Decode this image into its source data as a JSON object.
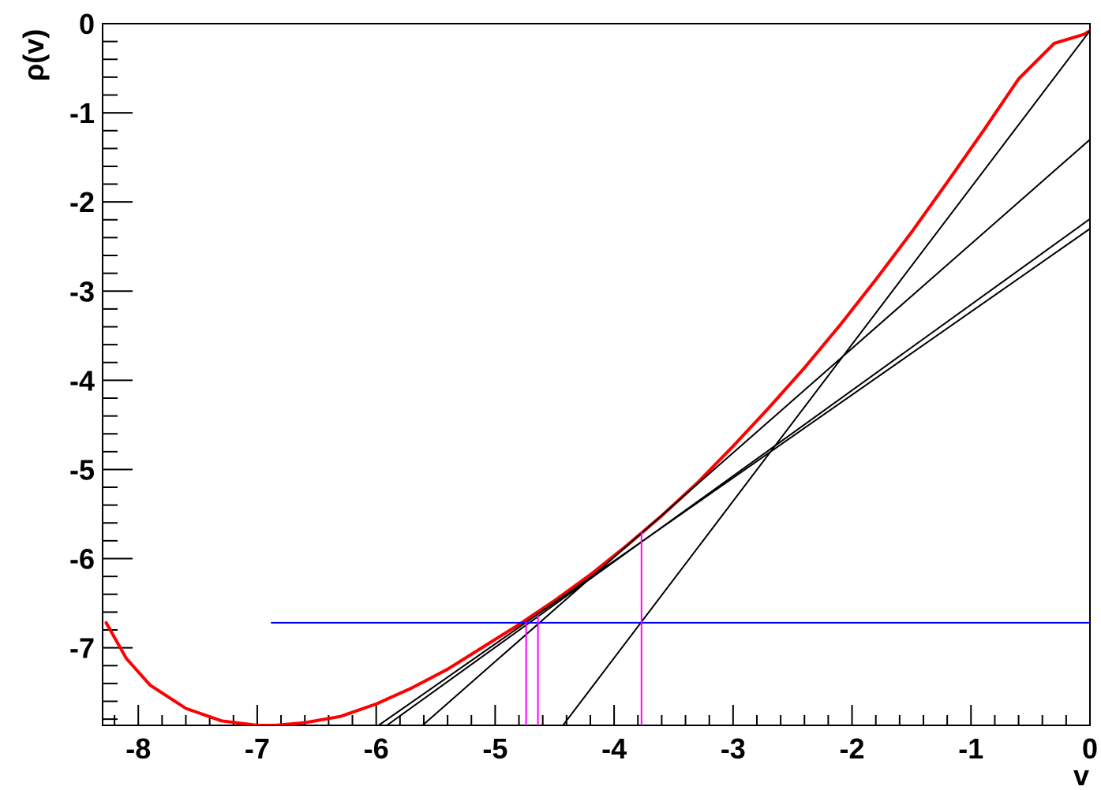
{
  "chart_data": {
    "type": "line",
    "title": "",
    "xlabel": "v",
    "ylabel": "ρ(v)",
    "xlim": [
      -8.3,
      0.0
    ],
    "ylim": [
      -7.87,
      0.0
    ],
    "x_ticks": [
      -8,
      -7,
      -6,
      -5,
      -4,
      -3,
      -2,
      -1,
      0
    ],
    "x_tick_labels": [
      "-8",
      "-7",
      "-6",
      "-5",
      "-4",
      "-3",
      "-2",
      "-1",
      "0"
    ],
    "y_ticks": [
      0,
      -1,
      -2,
      -3,
      -4,
      -5,
      -6,
      -7
    ],
    "y_tick_labels": [
      "0",
      "-1",
      "-2",
      "-3",
      "-4",
      "-5",
      "-6",
      "-7"
    ],
    "grid": false,
    "series": [
      {
        "kind": "curve",
        "color": "#ff0000",
        "x": [
          -8.27,
          -8.1,
          -7.9,
          -7.6,
          -7.3,
          -7.0,
          -6.85,
          -6.6,
          -6.3,
          -6.0,
          -5.7,
          -5.4,
          -5.1,
          -4.8,
          -4.5,
          -4.2,
          -3.9,
          -3.6,
          -3.3,
          -3.0,
          -2.7,
          -2.4,
          -2.1,
          -1.8,
          -1.5,
          -1.2,
          -0.9,
          -0.6,
          -0.3,
          -0.05,
          0.0
        ],
        "y": [
          -6.72,
          -7.12,
          -7.42,
          -7.68,
          -7.82,
          -7.87,
          -7.87,
          -7.84,
          -7.77,
          -7.63,
          -7.45,
          -7.24,
          -6.99,
          -6.74,
          -6.47,
          -6.18,
          -5.86,
          -5.52,
          -5.15,
          -4.74,
          -4.31,
          -3.86,
          -3.38,
          -2.87,
          -2.34,
          -1.78,
          -1.21,
          -0.62,
          -0.22,
          -0.12,
          -0.08
        ]
      },
      {
        "kind": "tangent",
        "color": "#000000",
        "x": [
          -5.98,
          0.0
        ],
        "y": [
          -7.87,
          -2.3
        ]
      },
      {
        "kind": "tangent",
        "color": "#000000",
        "x": [
          -5.91,
          0.0
        ],
        "y": [
          -7.87,
          -2.19
        ]
      },
      {
        "kind": "tangent",
        "color": "#000000",
        "x": [
          -5.61,
          0.0
        ],
        "y": [
          -7.87,
          -1.3
        ]
      },
      {
        "kind": "tangent",
        "color": "#000000",
        "x": [
          -4.43,
          0.0
        ],
        "y": [
          -7.87,
          -0.08
        ]
      },
      {
        "kind": "level",
        "color": "#0000ff",
        "x": [
          -6.88,
          0.0
        ],
        "y": [
          -6.72,
          -6.72
        ]
      },
      {
        "kind": "marker",
        "color": "#ff00ff",
        "x": [
          -4.74,
          -4.74
        ],
        "y": [
          -7.87,
          -6.72
        ]
      },
      {
        "kind": "marker",
        "color": "#ff00ff",
        "x": [
          -4.64,
          -4.64
        ],
        "y": [
          -7.87,
          -6.64
        ]
      },
      {
        "kind": "marker",
        "color": "#ff00ff",
        "x": [
          -3.77,
          -3.77
        ],
        "y": [
          -7.87,
          -5.7
        ]
      }
    ]
  }
}
